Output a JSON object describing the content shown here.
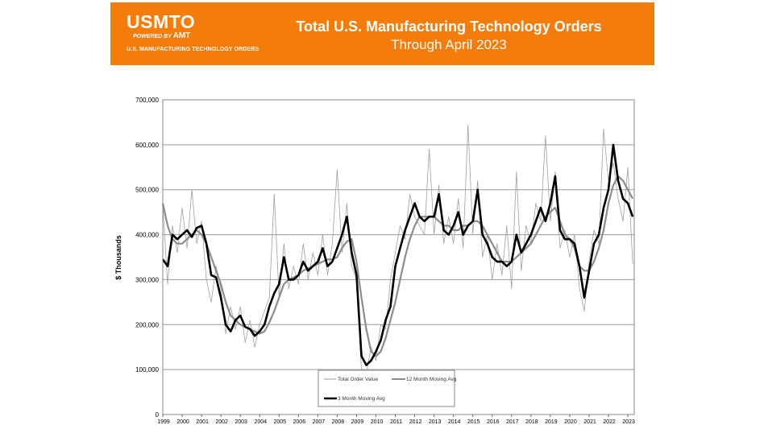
{
  "banner": {
    "logo_text": "USMTO",
    "powered_by": "POWERED BY",
    "powered_brand": "AMT",
    "logo_subtitle": "U.S. MANUFACTURING TECHNOLOGY ORDERS",
    "title": "Total U.S. Manufacturing Technology Orders",
    "subtitle": "Through April 2023",
    "color": "#f47c0a"
  },
  "chart_data": {
    "type": "line",
    "title": "Total U.S. Manufacturing Technology Orders",
    "subtitle": "Through April 2023",
    "xlabel": "",
    "ylabel": "$ Thousands",
    "xlim": [
      1999,
      2023.33
    ],
    "ylim": [
      0,
      700000
    ],
    "yticks": [
      "0",
      "100,000",
      "200,000",
      "300,000",
      "400,000",
      "500,000",
      "600,000",
      "700,000"
    ],
    "xticks": [
      "1999",
      "2000",
      "2001",
      "2002",
      "2003",
      "2004",
      "2005",
      "2006",
      "2007",
      "2008",
      "2009",
      "2010",
      "2011",
      "2012",
      "2013",
      "2014",
      "2015",
      "2016",
      "2017",
      "2018",
      "2019",
      "2020",
      "2021",
      "2022",
      "2023"
    ],
    "grid": "horizontal",
    "legend_position": "bottom-center",
    "x": [
      1999,
      1999.25,
      1999.5,
      1999.75,
      2000,
      2000.25,
      2000.5,
      2000.75,
      2001,
      2001.25,
      2001.5,
      2001.75,
      2002,
      2002.25,
      2002.5,
      2002.75,
      2003,
      2003.25,
      2003.5,
      2003.75,
      2004,
      2004.25,
      2004.5,
      2004.75,
      2005,
      2005.25,
      2005.5,
      2005.75,
      2006,
      2006.25,
      2006.5,
      2006.75,
      2007,
      2007.25,
      2007.5,
      2007.75,
      2008,
      2008.25,
      2008.5,
      2008.75,
      2009,
      2009.25,
      2009.5,
      2009.75,
      2010,
      2010.25,
      2010.5,
      2010.75,
      2011,
      2011.25,
      2011.5,
      2011.75,
      2012,
      2012.25,
      2012.5,
      2012.75,
      2013,
      2013.25,
      2013.5,
      2013.75,
      2014,
      2014.25,
      2014.5,
      2014.75,
      2015,
      2015.25,
      2015.5,
      2015.75,
      2016,
      2016.25,
      2016.5,
      2016.75,
      2017,
      2017.25,
      2017.5,
      2017.75,
      2018,
      2018.25,
      2018.5,
      2018.75,
      2019,
      2019.25,
      2019.5,
      2019.75,
      2020,
      2020.25,
      2020.5,
      2020.75,
      2021,
      2021.25,
      2021.5,
      2021.75,
      2022,
      2022.25,
      2022.5,
      2022.75,
      2023,
      2023.25
    ],
    "series": [
      {
        "name": "Total Order Value",
        "color": "#a0a0a0",
        "values": [
          470000,
          290000,
          420000,
          360000,
          460000,
          370000,
          500000,
          380000,
          430000,
          300000,
          250000,
          330000,
          280000,
          180000,
          240000,
          190000,
          240000,
          160000,
          210000,
          150000,
          200000,
          230000,
          260000,
          490000,
          260000,
          380000,
          280000,
          330000,
          290000,
          380000,
          300000,
          360000,
          310000,
          400000,
          310000,
          380000,
          545000,
          360000,
          470000,
          330000,
          300000,
          100000,
          90000,
          150000,
          120000,
          200000,
          190000,
          300000,
          360000,
          420000,
          390000,
          490000,
          440000,
          420000,
          400000,
          590000,
          400000,
          510000,
          380000,
          440000,
          380000,
          480000,
          370000,
          645000,
          400000,
          520000,
          350000,
          400000,
          300000,
          380000,
          310000,
          420000,
          280000,
          540000,
          320000,
          420000,
          380000,
          470000,
          430000,
          620000,
          430000,
          540000,
          370000,
          410000,
          350000,
          400000,
          280000,
          230000,
          340000,
          410000,
          380000,
          635000,
          520000,
          560000,
          480000,
          430000,
          550000,
          335000
        ]
      },
      {
        "name": "12 Month Moving Avg",
        "color": "#8c8c8c",
        "values": [
          470000,
          420000,
          390000,
          380000,
          380000,
          390000,
          400000,
          410000,
          400000,
          380000,
          350000,
          320000,
          290000,
          250000,
          220000,
          210000,
          200000,
          195000,
          190000,
          185000,
          180000,
          185000,
          205000,
          230000,
          260000,
          290000,
          300000,
          305000,
          310000,
          320000,
          325000,
          330000,
          335000,
          340000,
          345000,
          345000,
          350000,
          370000,
          385000,
          390000,
          340000,
          260000,
          190000,
          140000,
          130000,
          140000,
          170000,
          210000,
          250000,
          300000,
          350000,
          390000,
          420000,
          440000,
          440000,
          440000,
          440000,
          430000,
          420000,
          420000,
          410000,
          410000,
          420000,
          420000,
          430000,
          430000,
          420000,
          400000,
          380000,
          360000,
          340000,
          340000,
          340000,
          350000,
          360000,
          370000,
          380000,
          400000,
          420000,
          440000,
          450000,
          460000,
          430000,
          400000,
          390000,
          370000,
          330000,
          320000,
          320000,
          340000,
          370000,
          410000,
          470000,
          510000,
          530000,
          520000,
          500000,
          480000
        ]
      },
      {
        "name": "3 Month Moving Avg",
        "color": "#000000",
        "values": [
          345000,
          330000,
          400000,
          390000,
          400000,
          410000,
          395000,
          415000,
          420000,
          380000,
          310000,
          305000,
          260000,
          200000,
          185000,
          210000,
          220000,
          195000,
          190000,
          175000,
          185000,
          200000,
          240000,
          270000,
          290000,
          350000,
          300000,
          300000,
          310000,
          340000,
          320000,
          330000,
          340000,
          370000,
          330000,
          340000,
          370000,
          400000,
          440000,
          360000,
          310000,
          130000,
          110000,
          120000,
          140000,
          165000,
          210000,
          240000,
          330000,
          370000,
          410000,
          440000,
          470000,
          440000,
          430000,
          440000,
          440000,
          490000,
          410000,
          400000,
          420000,
          450000,
          400000,
          420000,
          430000,
          500000,
          400000,
          380000,
          350000,
          340000,
          340000,
          330000,
          340000,
          400000,
          360000,
          380000,
          400000,
          430000,
          460000,
          430000,
          470000,
          530000,
          410000,
          390000,
          390000,
          380000,
          330000,
          260000,
          320000,
          380000,
          400000,
          460000,
          500000,
          600000,
          520000,
          480000,
          470000,
          440000
        ]
      }
    ]
  }
}
